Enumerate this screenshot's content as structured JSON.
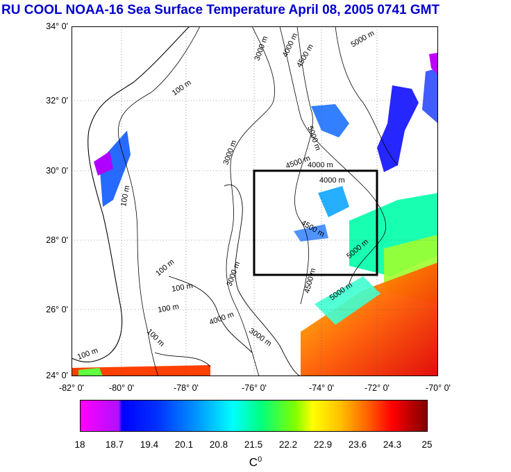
{
  "title": "RU COOL  NOAA-16 Sea Surface Temperature April 08, 2005 0741 GMT",
  "lat_labels": [
    "34° 0'",
    "32° 0'",
    "30° 0'",
    "28° 0'",
    "26° 0'",
    "24° 0'"
  ],
  "lon_labels": [
    "-82° 0'",
    "-80° 0'",
    "-78° 0'",
    "-76° 0'",
    "-74° 0'",
    "-72° 0'",
    "-70° 0'"
  ],
  "contour_labels": [
    "100 m",
    "100 m",
    "3000 m",
    "4000 m",
    "4500 m",
    "5000 m",
    "5000 m",
    "3000 m",
    "4000 m",
    "4000 m",
    "4500 m",
    "4500 m",
    "5000 m",
    "5000 m",
    "3000 m",
    "100 m",
    "100 m",
    "100 m",
    "4000 m",
    "100 m",
    "3000 m",
    "4500 m",
    "100 m"
  ],
  "colorbar": {
    "labels": [
      "18",
      "18.7",
      "19.4",
      "20.1",
      "20.8",
      "21.5",
      "22.2",
      "22.9",
      "23.6",
      "24.3",
      "25"
    ],
    "unit": "C",
    "unit_sup": "0"
  },
  "colors": {
    "title": "#0000cc",
    "box": "#000000"
  }
}
